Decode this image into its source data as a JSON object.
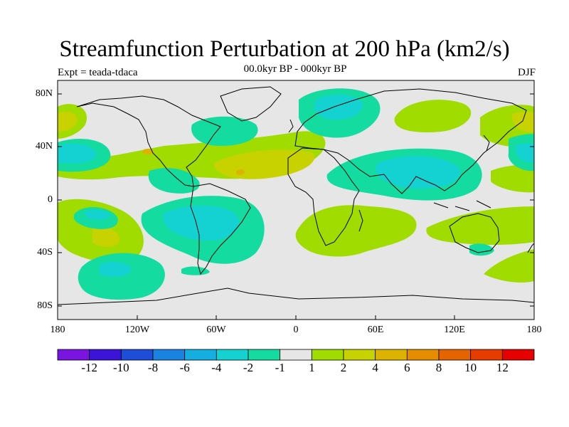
{
  "title": "Streamfunction Perturbation at 200 hPa (km2/s)",
  "subtitle": "00.0kyr BP - 000kyr BP",
  "experiment_label": "Expt = teada-tdaca",
  "season_label": "DJF",
  "map": {
    "lat_labels": [
      "80N",
      "40N",
      "0",
      "40S",
      "80S"
    ],
    "lon_labels": [
      "180",
      "120W",
      "60W",
      "0",
      "60E",
      "120E",
      "180"
    ],
    "lon_range": [
      -180,
      180
    ],
    "lat_range": [
      -90,
      90
    ]
  },
  "colorbar": {
    "labels": [
      "-12",
      "-10",
      "-8",
      "-6",
      "-4",
      "-2",
      "-1",
      "1",
      "2",
      "4",
      "6",
      "8",
      "10",
      "12"
    ],
    "colors": [
      "#7a14e0",
      "#3b14d8",
      "#1e4ed8",
      "#1a82e0",
      "#14aee0",
      "#14d2d2",
      "#14dca0",
      "#e6e6e6",
      "#a0dc00",
      "#c8d200",
      "#dcb400",
      "#e68c00",
      "#e66400",
      "#e63c00",
      "#e60000"
    ]
  },
  "colors": {
    "background_field": "#e6e6e6",
    "neg_1": "#14dca0",
    "neg_2": "#14d2d2",
    "pos_1": "#a0dc00",
    "pos_2": "#c8d200",
    "pos_3": "#dcb400"
  }
}
